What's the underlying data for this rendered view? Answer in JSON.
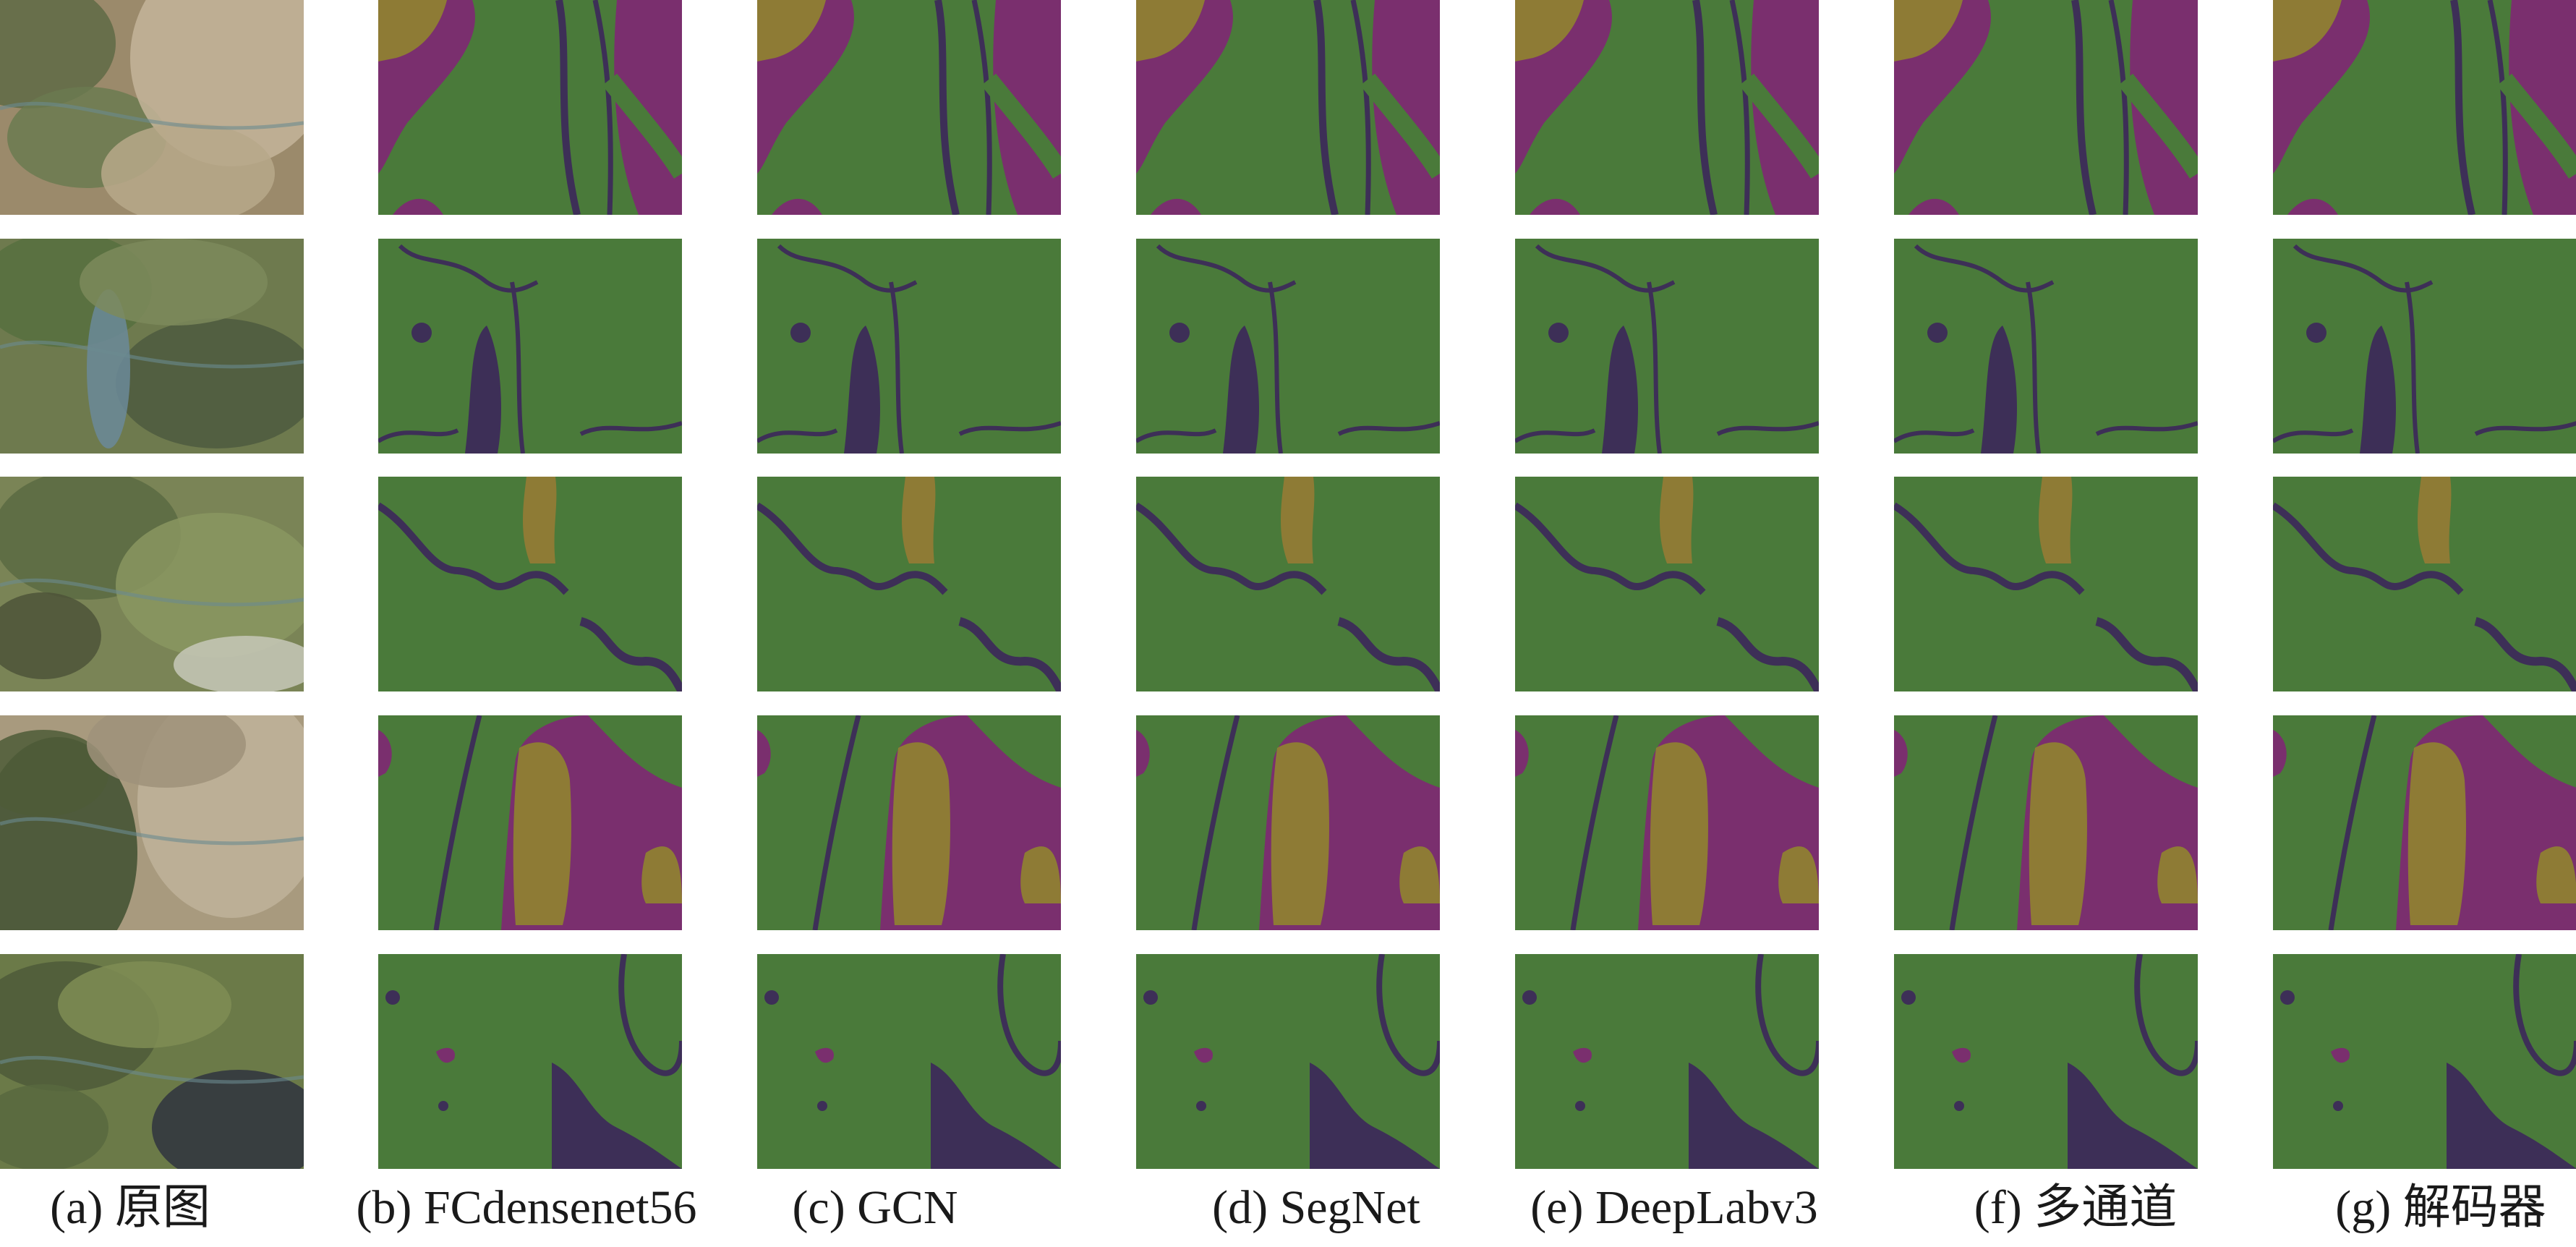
{
  "figure": {
    "columns": [
      {
        "key": "a",
        "caption": "(a) 原图",
        "kind": "aerial-photo"
      },
      {
        "key": "b",
        "caption": "(b) FCdensenet56",
        "kind": "segmentation"
      },
      {
        "key": "c",
        "caption": "(c) GCN",
        "kind": "segmentation"
      },
      {
        "key": "d",
        "caption": "(d) SegNet",
        "kind": "segmentation"
      },
      {
        "key": "e",
        "caption": "(e) DeepLabv3",
        "kind": "segmentation"
      },
      {
        "key": "f",
        "caption": "(f) 多通道",
        "kind": "segmentation"
      },
      {
        "key": "g",
        "caption": "(g) 解码器",
        "kind": "segmentation"
      }
    ],
    "row_count": 5,
    "class_colors": {
      "vegetation": "#4a7a3a",
      "bare_land": "#7a2f6e",
      "sand": "#8e7b35",
      "water": "#3d2f57"
    }
  }
}
